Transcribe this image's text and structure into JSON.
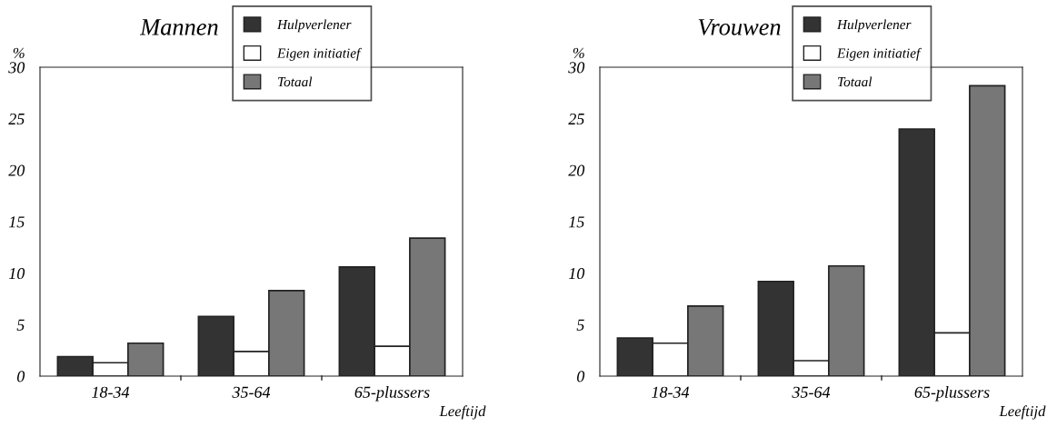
{
  "chart_data": [
    {
      "type": "bar",
      "title": "Mannen",
      "ylabel": "%",
      "xlabel": "Leeftijd",
      "categories": [
        "18-34",
        "35-64",
        "65-plussers"
      ],
      "ylim": [
        0,
        30
      ],
      "yticks": [
        0,
        5,
        10,
        15,
        20,
        25,
        30
      ],
      "legend": "top right",
      "grid": false,
      "series": [
        {
          "name": "Hulpverlener",
          "color": "#333333",
          "values": [
            1.9,
            5.8,
            10.6
          ]
        },
        {
          "name": "Eigen initiatief",
          "color": "#ffffff",
          "values": [
            1.3,
            2.4,
            2.9
          ]
        },
        {
          "name": "Totaal",
          "color": "#777777",
          "values": [
            3.2,
            8.3,
            13.4
          ]
        }
      ]
    },
    {
      "type": "bar",
      "title": "Vrouwen",
      "ylabel": "%",
      "xlabel": "Leeftijd",
      "categories": [
        "18-34",
        "35-64",
        "65-plussers"
      ],
      "ylim": [
        0,
        30
      ],
      "yticks": [
        0,
        5,
        10,
        15,
        20,
        25,
        30
      ],
      "legend": "top right",
      "grid": false,
      "series": [
        {
          "name": "Hulpverlener",
          "color": "#333333",
          "values": [
            3.7,
            9.2,
            24.0
          ]
        },
        {
          "name": "Eigen initiatief",
          "color": "#ffffff",
          "values": [
            3.2,
            1.5,
            4.2
          ]
        },
        {
          "name": "Totaal",
          "color": "#777777",
          "values": [
            6.8,
            10.7,
            28.2
          ]
        }
      ]
    }
  ]
}
